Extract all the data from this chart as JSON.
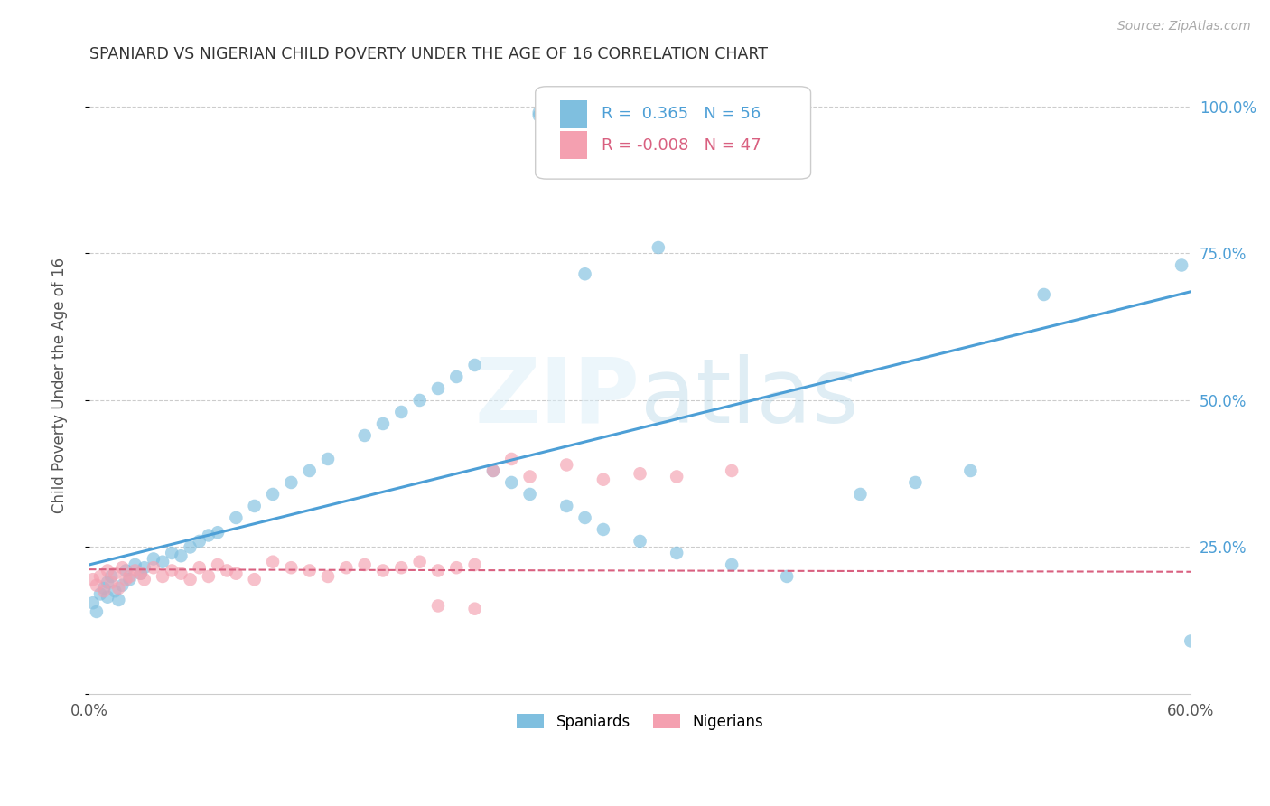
{
  "title": "SPANIARD VS NIGERIAN CHILD POVERTY UNDER THE AGE OF 16 CORRELATION CHART",
  "source": "Source: ZipAtlas.com",
  "ylabel_label": "Child Poverty Under the Age of 16",
  "legend_spaniards": "Spaniards",
  "legend_nigerians": "Nigerians",
  "R_spaniards": 0.365,
  "N_spaniards": 56,
  "R_nigerians": -0.008,
  "N_nigerians": 47,
  "color_blue": "#7fbfdf",
  "color_pink": "#f4a0b0",
  "color_line_blue": "#4d9fd6",
  "color_line_pink": "#d96080",
  "xlim": [
    0.0,
    0.6
  ],
  "ylim": [
    0.0,
    1.05
  ],
  "blue_line_x0": 0.0,
  "blue_line_y0": 0.22,
  "blue_line_x1": 0.6,
  "blue_line_y1": 0.685,
  "pink_line_x0": 0.0,
  "pink_line_y0": 0.212,
  "pink_line_x1": 0.6,
  "pink_line_y1": 0.208,
  "spaniards_x": [
    0.002,
    0.004,
    0.006,
    0.008,
    0.01,
    0.01,
    0.012,
    0.014,
    0.016,
    0.018,
    0.02,
    0.022,
    0.025,
    0.028,
    0.03,
    0.035,
    0.04,
    0.045,
    0.05,
    0.055,
    0.06,
    0.065,
    0.07,
    0.08,
    0.09,
    0.1,
    0.11,
    0.12,
    0.13,
    0.15,
    0.16,
    0.17,
    0.18,
    0.19,
    0.2,
    0.21,
    0.22,
    0.23,
    0.24,
    0.26,
    0.27,
    0.28,
    0.3,
    0.32,
    0.35,
    0.38,
    0.42,
    0.45,
    0.48,
    0.52,
    0.27,
    0.31,
    0.245,
    0.6,
    0.595,
    0.245
  ],
  "spaniards_y": [
    0.155,
    0.14,
    0.17,
    0.18,
    0.19,
    0.165,
    0.2,
    0.175,
    0.16,
    0.185,
    0.21,
    0.195,
    0.22,
    0.205,
    0.215,
    0.23,
    0.225,
    0.24,
    0.235,
    0.25,
    0.26,
    0.27,
    0.275,
    0.3,
    0.32,
    0.34,
    0.36,
    0.38,
    0.4,
    0.44,
    0.46,
    0.48,
    0.5,
    0.52,
    0.54,
    0.56,
    0.38,
    0.36,
    0.34,
    0.32,
    0.3,
    0.28,
    0.26,
    0.24,
    0.22,
    0.2,
    0.34,
    0.36,
    0.38,
    0.68,
    0.715,
    0.76,
    0.985,
    0.09,
    0.73,
    0.99
  ],
  "nigerians_x": [
    0.002,
    0.004,
    0.006,
    0.008,
    0.01,
    0.012,
    0.014,
    0.016,
    0.018,
    0.02,
    0.022,
    0.025,
    0.028,
    0.03,
    0.035,
    0.04,
    0.045,
    0.05,
    0.055,
    0.06,
    0.065,
    0.07,
    0.075,
    0.08,
    0.09,
    0.1,
    0.11,
    0.12,
    0.13,
    0.14,
    0.15,
    0.16,
    0.17,
    0.18,
    0.19,
    0.2,
    0.21,
    0.22,
    0.23,
    0.24,
    0.26,
    0.28,
    0.3,
    0.32,
    0.35,
    0.19,
    0.21
  ],
  "nigerians_y": [
    0.195,
    0.185,
    0.2,
    0.175,
    0.21,
    0.19,
    0.205,
    0.18,
    0.215,
    0.195,
    0.2,
    0.21,
    0.205,
    0.195,
    0.215,
    0.2,
    0.21,
    0.205,
    0.195,
    0.215,
    0.2,
    0.22,
    0.21,
    0.205,
    0.195,
    0.225,
    0.215,
    0.21,
    0.2,
    0.215,
    0.22,
    0.21,
    0.215,
    0.225,
    0.21,
    0.215,
    0.22,
    0.38,
    0.4,
    0.37,
    0.39,
    0.365,
    0.375,
    0.37,
    0.38,
    0.15,
    0.145
  ],
  "yticks": [
    0.0,
    0.25,
    0.5,
    0.75,
    1.0
  ],
  "ytick_labels_right": [
    "",
    "25.0%",
    "50.0%",
    "75.0%",
    "100.0%"
  ],
  "xticks": [
    0.0,
    0.1,
    0.2,
    0.3,
    0.4,
    0.5,
    0.6
  ],
  "xtick_labels": [
    "0.0%",
    "",
    "",
    "",
    "",
    "",
    "60.0%"
  ]
}
